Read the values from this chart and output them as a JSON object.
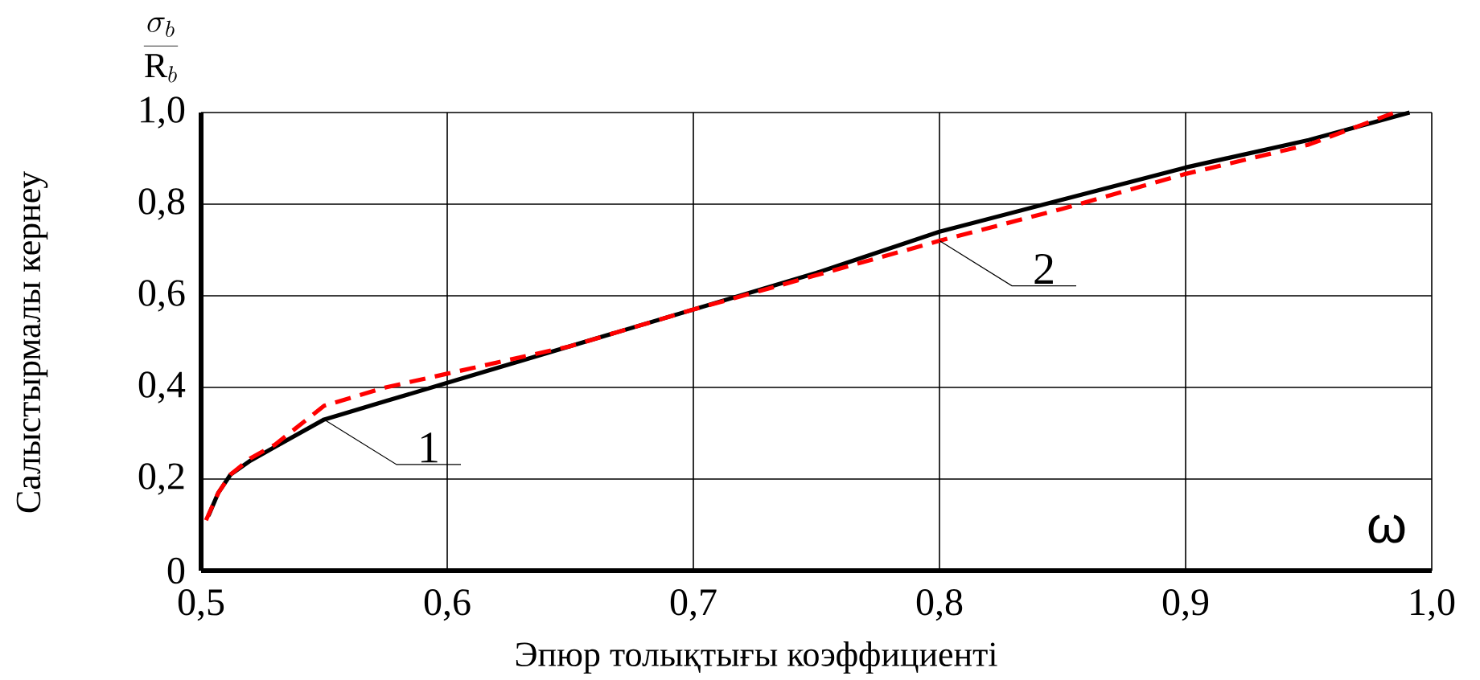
{
  "chart_data": {
    "type": "line",
    "xlabel": "Эпюр толықтығы коэффициенті",
    "ylabel": "Салыстырмалы кернеу",
    "annotations": [
      "\\frac{\\sigma_b}{\\mathrm{R}_{b}}",
      "ω"
    ],
    "xlim": [
      0.5,
      1.0
    ],
    "ylim": [
      0,
      1.0
    ],
    "xticks": [
      {
        "value": 0.5,
        "label": "0,5"
      },
      {
        "value": 0.6,
        "label": "0,6"
      },
      {
        "value": 0.7,
        "label": "0,7"
      },
      {
        "value": 0.8,
        "label": "0,8"
      },
      {
        "value": 0.9,
        "label": "0,9"
      },
      {
        "value": 1.0,
        "label": "1,0"
      }
    ],
    "yticks": [
      0,
      {
        "value": 0.2,
        "label": "0,2"
      },
      {
        "value": 0.4,
        "label": "0,4"
      },
      {
        "value": 0.6,
        "label": "0,6"
      },
      {
        "value": 0.8,
        "label": "0,8"
      },
      {
        "value": 1.0,
        "label": "1,0"
      }
    ],
    "grid": true,
    "marker": "none",
    "series": [
      {
        "name": "1",
        "color": "#000000",
        "line_style": "solid",
        "x": [
          0.503,
          0.507,
          0.512,
          0.52,
          0.53,
          0.55,
          0.575,
          0.6,
          0.65,
          0.7,
          0.75,
          0.8,
          0.85,
          0.9,
          0.95,
          0.991
        ],
        "values": [
          0.12,
          0.17,
          0.21,
          0.24,
          0.27,
          0.33,
          0.37,
          0.41,
          0.49,
          0.57,
          0.65,
          0.74,
          0.81,
          0.88,
          0.94,
          1.0
        ]
      },
      {
        "name": "2",
        "color": "#ff0000",
        "line_style": "dashed",
        "x": [
          0.502,
          0.507,
          0.512,
          0.52,
          0.53,
          0.55,
          0.575,
          0.6,
          0.65,
          0.7,
          0.75,
          0.8,
          0.85,
          0.9,
          0.95,
          0.985
        ],
        "values": [
          0.11,
          0.17,
          0.21,
          0.245,
          0.275,
          0.36,
          0.4,
          0.43,
          0.49,
          0.57,
          0.645,
          0.72,
          0.79,
          0.866,
          0.93,
          1.0
        ]
      }
    ]
  }
}
